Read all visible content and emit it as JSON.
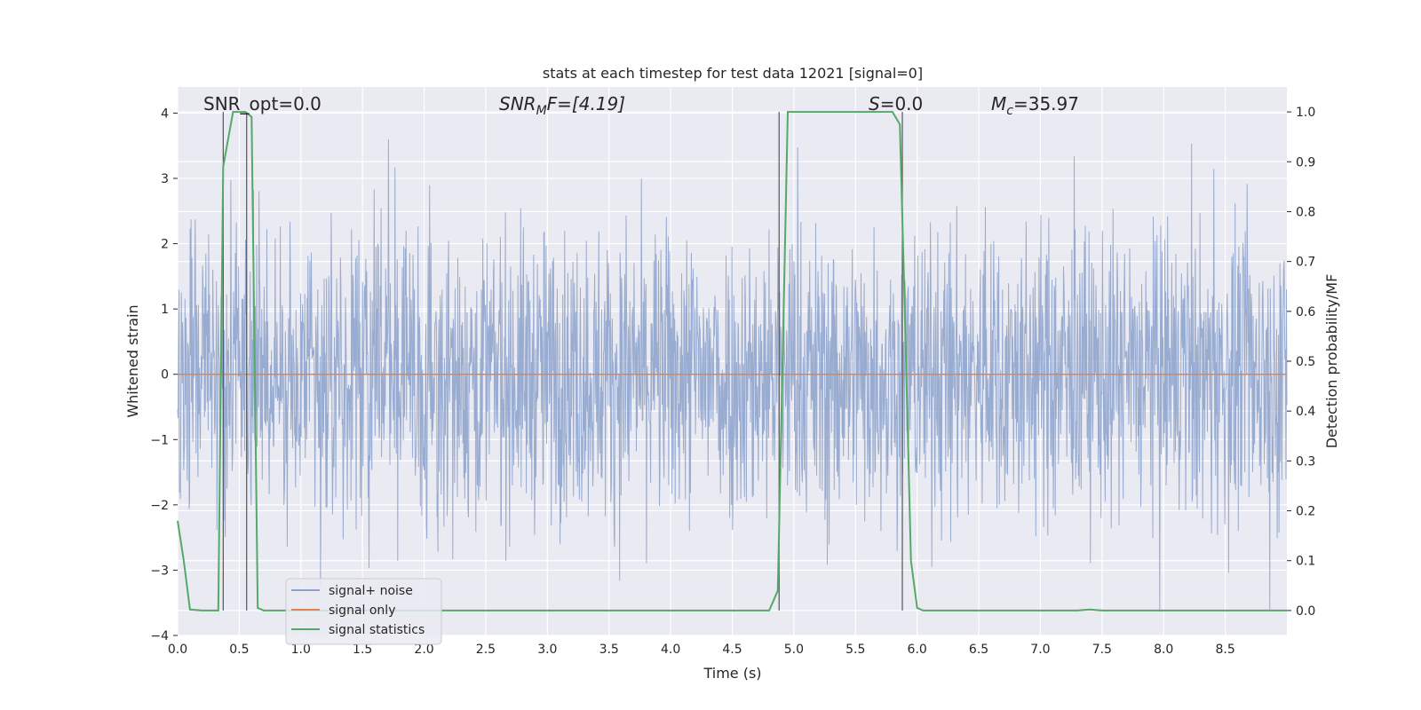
{
  "chart_data": {
    "type": "line",
    "title": "stats at each timestep for test data 12021 [signal=0]",
    "xlabel": "Time (s)",
    "ylabel": "Whitened strain",
    "y2label": "Detection probability/MF",
    "xlim": [
      0.0,
      9.0
    ],
    "ylim": [
      -4.0,
      4.4
    ],
    "y2lim": [
      -0.05,
      1.05
    ],
    "x_ticks": [
      "0.0",
      "0.5",
      "1.0",
      "1.5",
      "2.0",
      "2.5",
      "3.0",
      "3.5",
      "4.0",
      "4.5",
      "5.0",
      "5.5",
      "6.0",
      "6.5",
      "7.0",
      "7.5",
      "8.0",
      "8.5"
    ],
    "y_ticks": [
      "4",
      "3",
      "2",
      "1",
      "0",
      "−1",
      "−2",
      "−3",
      "−4"
    ],
    "y2_ticks": [
      "1.0",
      "0.9",
      "0.8",
      "0.7",
      "0.6",
      "0.5",
      "0.4",
      "0.3",
      "0.2",
      "0.1",
      "0.0"
    ],
    "grid": true,
    "legend_position": "lower-left",
    "annotations": {
      "snr_opt": "SNR_opt=0.0",
      "snr_mf_main": "SNR",
      "snr_mf_sub": "M",
      "snr_mf_rest": "F=[4.19]",
      "s_main": "S",
      "s_rest": "=0.0",
      "mc_main": "M",
      "mc_sub": "c",
      "mc_rest": "=35.97"
    },
    "series": [
      {
        "name": "signal+ noise",
        "color": "#8fa4cc",
        "description": "whitened noise, approximately gaussian, amplitude ~±2 with spikes to ±3.5",
        "x_range": [
          0.0,
          9.0
        ],
        "y_range_typical": [
          -2.0,
          2.0
        ]
      },
      {
        "name": "signal only",
        "color": "#dd8452",
        "x": [
          0.0,
          9.0
        ],
        "y": [
          0.0,
          0.0
        ]
      },
      {
        "name": "signal statistics",
        "color": "#55a868",
        "x": [
          0.0,
          0.05,
          0.1,
          0.2,
          0.3,
          0.33,
          0.37,
          0.45,
          0.55,
          0.6,
          0.65,
          0.7,
          0.8,
          4.8,
          4.87,
          4.95,
          5.0,
          5.5,
          5.8,
          5.86,
          5.9,
          5.95,
          6.0,
          6.05,
          7.3,
          7.4,
          7.5,
          9.0
        ],
        "y": [
          0.18,
          0.1,
          0.002,
          0.0,
          0.0,
          0.0,
          0.89,
          1.0,
          1.0,
          0.99,
          0.005,
          0.0,
          0.0,
          0.0,
          0.04,
          1.0,
          1.0,
          1.0,
          1.0,
          0.975,
          0.6,
          0.1,
          0.005,
          0.0,
          0.0,
          0.002,
          0.0,
          0.0
        ]
      }
    ],
    "vertical_markers_x": [
      0.37,
      0.56,
      4.88,
      5.88
    ]
  }
}
